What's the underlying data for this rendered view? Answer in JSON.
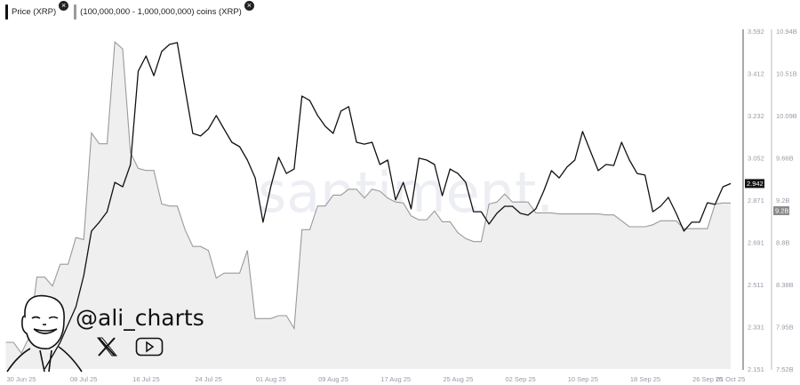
{
  "legend": {
    "items": [
      {
        "label": "Price (XRP)",
        "color": "#111111"
      },
      {
        "label": "(100,000,000 - 1,000,000,000) coins (XRP)",
        "color": "#9a9a9a"
      }
    ],
    "close_icon": "x-circle-icon"
  },
  "watermark": "santiment.",
  "branding": {
    "handle": "@ali_charts",
    "icons": [
      "x-logo-icon",
      "youtube-icon"
    ]
  },
  "chart_data": {
    "type": "line",
    "x_ticks": [
      "30 Jun 25",
      "08 Jul 25",
      "16 Jul 25",
      "24 Jul 25",
      "01 Aug 25",
      "09 Aug 25",
      "17 Aug 25",
      "25 Aug 25",
      "02 Sep 25",
      "10 Sep 25",
      "18 Sep 25",
      "26 Sep 25",
      "01 Oct 25"
    ],
    "y_left_ticks": [],
    "price_axis": {
      "ticks": [
        "3.592",
        "3.412",
        "3.232",
        "3.052",
        "2.871",
        "2.691",
        "2.511",
        "2.331",
        "2.151"
      ],
      "range": [
        2.151,
        3.592
      ]
    },
    "volume_axis": {
      "ticks": [
        "10.94B",
        "10.51B",
        "10.09B",
        "9.66B",
        "9.2B",
        "8.8B",
        "8.38B",
        "7.95B",
        "7.52B"
      ],
      "range": [
        7.52,
        10.94
      ],
      "unit": "B"
    },
    "current_price_label": "2.942",
    "current_volume_label": "9.2B",
    "dates": [
      "2025-06-28",
      "2025-06-29",
      "2025-06-30",
      "2025-07-01",
      "2025-07-02",
      "2025-07-03",
      "2025-07-04",
      "2025-07-05",
      "2025-07-06",
      "2025-07-07",
      "2025-07-08",
      "2025-07-09",
      "2025-07-10",
      "2025-07-11",
      "2025-07-12",
      "2025-07-13",
      "2025-07-14",
      "2025-07-15",
      "2025-07-16",
      "2025-07-17",
      "2025-07-18",
      "2025-07-19",
      "2025-07-20",
      "2025-07-21",
      "2025-07-22",
      "2025-07-23",
      "2025-07-24",
      "2025-07-25",
      "2025-07-26",
      "2025-07-27",
      "2025-07-28",
      "2025-07-29",
      "2025-07-30",
      "2025-07-31",
      "2025-08-01",
      "2025-08-02",
      "2025-08-03",
      "2025-08-04",
      "2025-08-05",
      "2025-08-06",
      "2025-08-07",
      "2025-08-08",
      "2025-08-09",
      "2025-08-10",
      "2025-08-11",
      "2025-08-12",
      "2025-08-13",
      "2025-08-14",
      "2025-08-15",
      "2025-08-16",
      "2025-08-17",
      "2025-08-18",
      "2025-08-19",
      "2025-08-20",
      "2025-08-21",
      "2025-08-22",
      "2025-08-23",
      "2025-08-24",
      "2025-08-25",
      "2025-08-26",
      "2025-08-27",
      "2025-08-28",
      "2025-08-29",
      "2025-08-30",
      "2025-08-31",
      "2025-09-01",
      "2025-09-02",
      "2025-09-03",
      "2025-09-04",
      "2025-09-05",
      "2025-09-06",
      "2025-09-07",
      "2025-09-08",
      "2025-09-09",
      "2025-09-10",
      "2025-09-11",
      "2025-09-12",
      "2025-09-13",
      "2025-09-14",
      "2025-09-15",
      "2025-09-16",
      "2025-09-17",
      "2025-09-18",
      "2025-09-19",
      "2025-09-20",
      "2025-09-21",
      "2025-09-22",
      "2025-09-23",
      "2025-09-24",
      "2025-09-25",
      "2025-09-26",
      "2025-09-27",
      "2025-09-28",
      "2025-09-29"
    ],
    "series": [
      {
        "name": "Price (XRP)",
        "axis": "price",
        "color": "#111111",
        "values": [
          null,
          null,
          null,
          null,
          null,
          2.151,
          2.208,
          2.265,
          2.341,
          2.416,
          2.549,
          2.739,
          2.777,
          2.822,
          2.947,
          2.928,
          3.023,
          3.421,
          3.486,
          3.402,
          3.505,
          3.535,
          3.543,
          3.346,
          3.156,
          3.145,
          3.175,
          3.232,
          3.175,
          3.118,
          3.099,
          3.042,
          2.966,
          2.777,
          2.928,
          3.054,
          2.985,
          3.004,
          3.315,
          3.296,
          3.232,
          3.186,
          3.156,
          3.251,
          3.27,
          3.118,
          3.11,
          3.118,
          3.023,
          3.042,
          2.872,
          2.947,
          2.834,
          3.05,
          3.042,
          3.023,
          2.89,
          3.004,
          2.985,
          2.947,
          2.822,
          2.822,
          2.769,
          2.815,
          2.845,
          2.845,
          2.815,
          2.807,
          2.834,
          2.909,
          2.997,
          2.966,
          3.012,
          3.042,
          3.164,
          3.08,
          2.997,
          3.023,
          3.019,
          3.118,
          3.042,
          2.985,
          2.978,
          2.822,
          2.845,
          2.883,
          2.815,
          2.739,
          2.777,
          2.777,
          2.86,
          2.853,
          2.928,
          2.942
        ]
      },
      {
        "name": "(100,000,000 - 1,000,000,000) coins (XRP)",
        "axis": "volume",
        "color": "#9a9a9a",
        "fill": "#efefef",
        "values": [
          7.79,
          7.79,
          7.68,
          7.84,
          8.45,
          8.45,
          8.36,
          8.58,
          8.58,
          8.85,
          8.83,
          9.91,
          9.8,
          9.8,
          10.83,
          10.76,
          9.71,
          9.55,
          9.53,
          9.53,
          9.19,
          9.17,
          9.17,
          8.93,
          8.76,
          8.76,
          8.72,
          8.44,
          8.49,
          8.49,
          8.49,
          8.72,
          8.03,
          8.03,
          8.03,
          8.06,
          8.06,
          7.93,
          8.93,
          8.93,
          9.17,
          9.17,
          9.28,
          9.28,
          9.34,
          9.34,
          9.25,
          9.34,
          9.32,
          9.25,
          9.21,
          9.2,
          9.07,
          9.03,
          9.03,
          9.12,
          9.01,
          9.01,
          8.9,
          8.84,
          8.81,
          8.81,
          9.19,
          9.21,
          9.29,
          9.21,
          9.21,
          9.21,
          9.1,
          9.1,
          9.1,
          9.09,
          9.09,
          9.09,
          9.09,
          9.09,
          9.09,
          9.08,
          9.08,
          9.02,
          8.96,
          8.96,
          8.96,
          8.98,
          9.02,
          9.02,
          9.02,
          8.94,
          8.94,
          8.94,
          8.94,
          9.19,
          9.2,
          9.2
        ]
      }
    ],
    "grid": false
  }
}
